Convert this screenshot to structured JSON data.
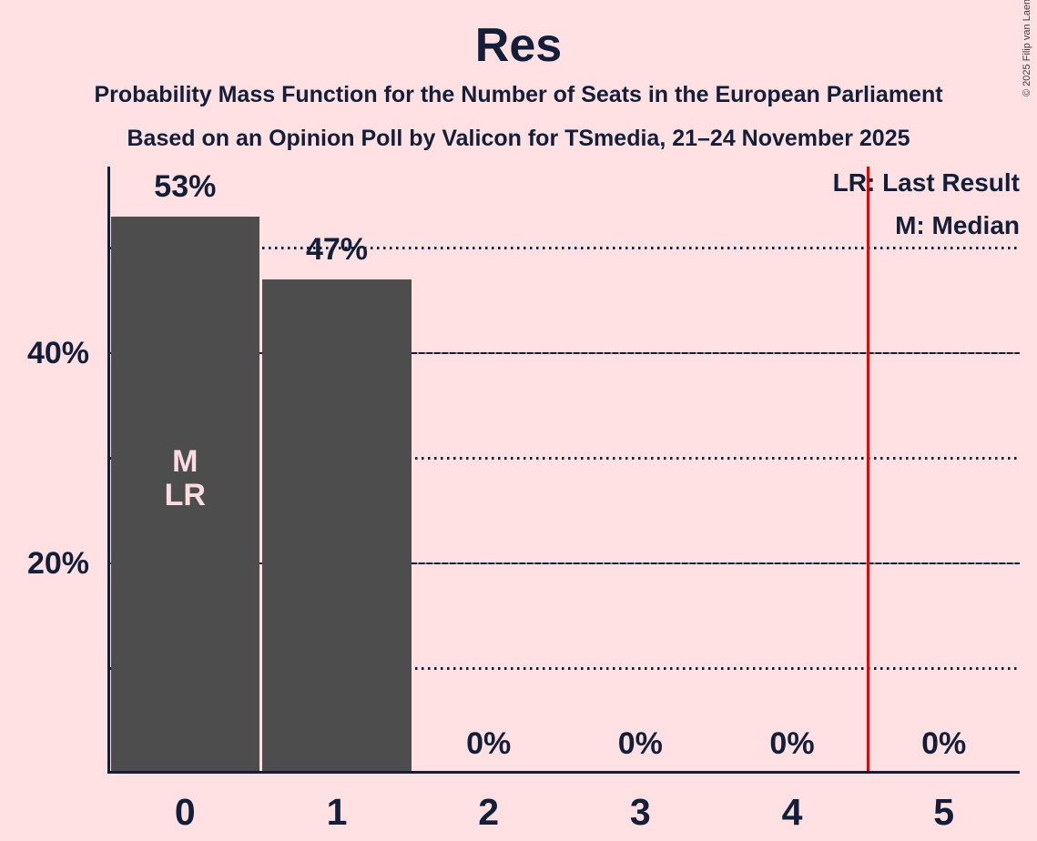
{
  "title": "Res",
  "subtitles": {
    "line1": "Probability Mass Function for the Number of Seats in the European Parliament",
    "line2": "Based on an Opinion Poll by Valicon for TSmedia, 21–24 November 2025"
  },
  "copyright": "© 2025 Filip van Laenen",
  "legend": {
    "last_result": "LR: Last Result",
    "median": "M: Median"
  },
  "colors": {
    "background": "#ffe0e3",
    "bar": "#4d4d4d",
    "text": "#131f38",
    "bar_annotation_text": "#fbdce3",
    "last_result_line": "#f40000"
  },
  "chart_data": {
    "type": "bar",
    "title": "Res",
    "xlabel": "",
    "ylabel": "",
    "categories": [
      "0",
      "1",
      "2",
      "3",
      "4",
      "5"
    ],
    "values": [
      53,
      47,
      0,
      0,
      0,
      0
    ],
    "value_labels": [
      "53%",
      "47%",
      "0%",
      "0%",
      "0%",
      "0%"
    ],
    "y_axis": {
      "ticks": [
        {
          "value": 40,
          "label": "40%"
        },
        {
          "value": 20,
          "label": "20%"
        }
      ],
      "solid_gridlines": [
        40,
        20
      ],
      "dotted_gridlines": [
        50,
        30,
        10
      ],
      "range": [
        0,
        57.5
      ]
    },
    "grid": "horizontal-only",
    "legend_position": "top-right",
    "median_category": "0",
    "last_result_category": "0",
    "bar_annotations": [
      {
        "category_index": 0,
        "lines": [
          "M",
          "LR"
        ]
      }
    ],
    "last_result_line_position": 4.5
  }
}
